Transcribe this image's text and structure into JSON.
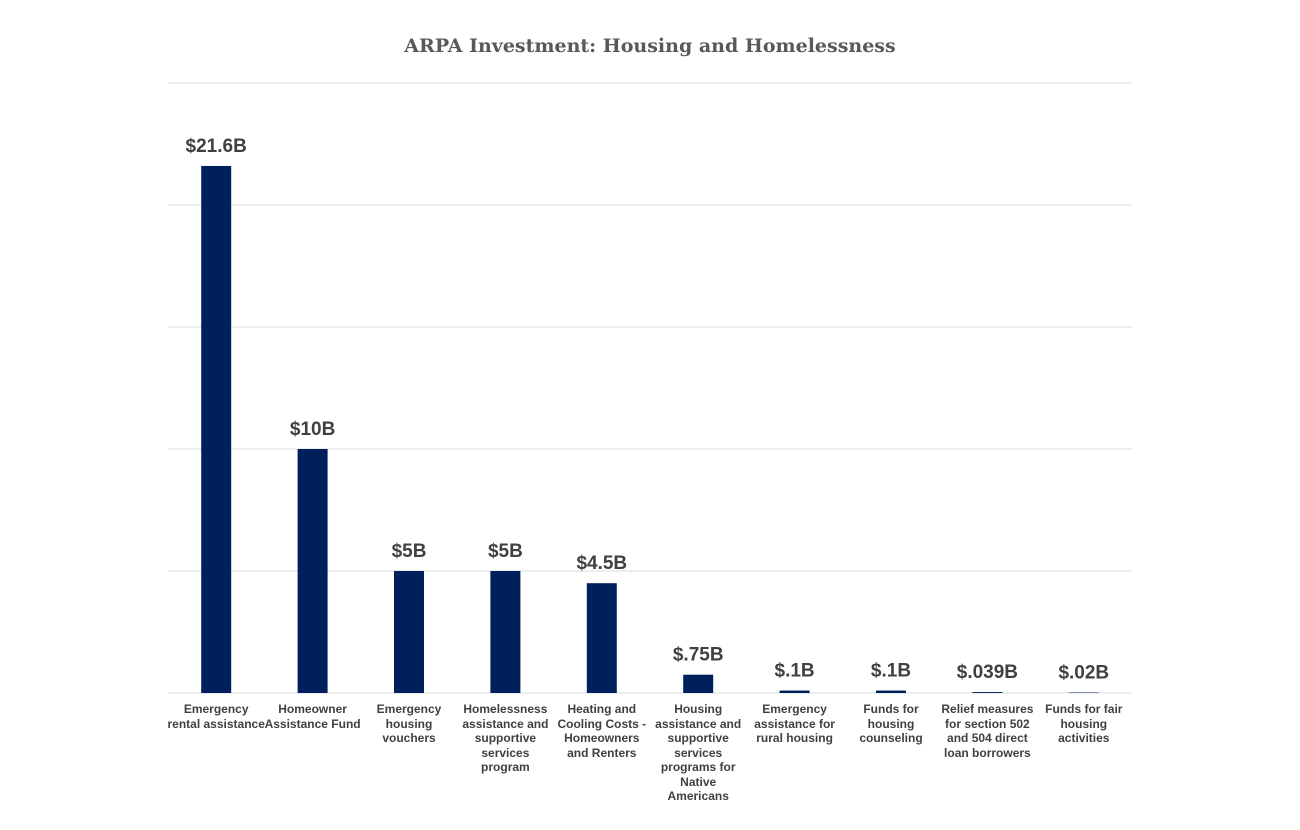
{
  "chart_data": {
    "type": "bar",
    "title": "ARPA Investment: Housing and Homelessness",
    "categories": [
      "Emergency rental assistance",
      "Homeowner Assistance Fund",
      "Emergency housing vouchers",
      "Homelessness assistance and supportive services program",
      "Heating and Cooling Costs - Homeowners and Renters",
      "Housing assistance and supportive services programs for Native Americans",
      "Emergency assistance for rural housing",
      "Funds for housing counseling",
      "Relief measures for section 502 and 504 direct loan borrowers",
      "Funds for fair housing activities"
    ],
    "values": [
      21.6,
      10,
      5,
      5,
      4.5,
      0.75,
      0.1,
      0.1,
      0.039,
      0.02
    ],
    "value_labels": [
      "$21.6B",
      "$10B",
      "$5B",
      "$5B",
      "$4.5B",
      "$.75B",
      "$.1B",
      "$.1B",
      "$.039B",
      "$.02B"
    ],
    "color": "#00205b",
    "ylim": [
      0,
      25
    ],
    "yticks": [
      0,
      5,
      10,
      15,
      20,
      25
    ],
    "grid": true
  }
}
